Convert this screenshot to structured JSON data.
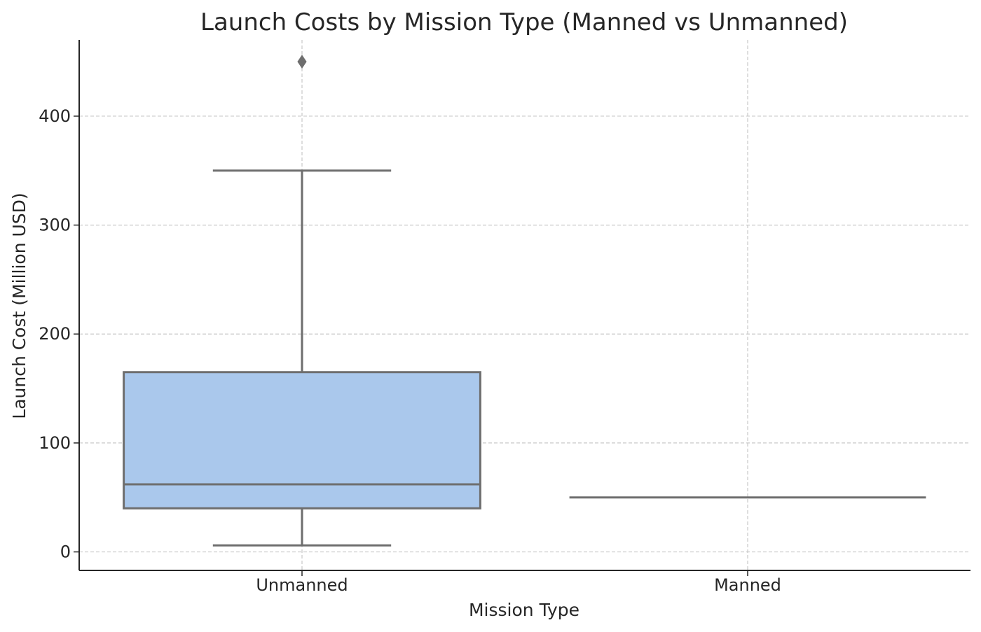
{
  "chart_data": {
    "type": "box",
    "title": "Launch Costs by Mission Type (Manned vs Unmanned)",
    "xlabel": "Mission Type",
    "ylabel": "Launch Cost (Million USD)",
    "categories": [
      "Unmanned",
      "Manned"
    ],
    "ylim": [
      -17,
      470
    ],
    "yticks": [
      0,
      100,
      200,
      300,
      400
    ],
    "grid": true,
    "box_color": "#aac8ec",
    "line_color": "#6e6e6e",
    "boxes": [
      {
        "category": "Unmanned",
        "whisker_low": 6,
        "q1": 40,
        "median": 62,
        "q3": 165,
        "whisker_high": 350,
        "outliers": [
          450
        ]
      },
      {
        "category": "Manned",
        "whisker_low": 50,
        "q1": 50,
        "median": 50,
        "q3": 50,
        "whisker_high": 50,
        "outliers": []
      }
    ]
  }
}
